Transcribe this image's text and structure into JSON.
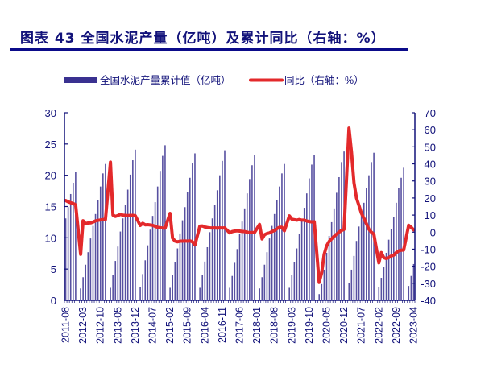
{
  "title": "图表 43 全国水泥产量（亿吨）及累计同比（右轴：%）",
  "colors": {
    "bars": "#3a3190",
    "line": "#e3292b",
    "axis": "#12127a",
    "rule": "#0b0b8a"
  },
  "chart_data": {
    "type": "bar+line",
    "title": "图表 43 全国水泥产量（亿吨）及累计同比（右轴：%）",
    "legend": {
      "placement": "top",
      "entries": [
        "全国水泥产量累计值（亿吨）",
        "同比（右轴：%）"
      ]
    },
    "grid": false,
    "start_month": "2011-08",
    "end_month": "2023-04",
    "x_tick_labels": [
      "2011-08",
      "2012-03",
      "2012-10",
      "2013-05",
      "2013-12",
      "2014-07",
      "2015-02",
      "2015-09",
      "2016-04",
      "2016-11",
      "2017-06",
      "2018-01",
      "2018-08",
      "2019-03",
      "2019-10",
      "2020-05",
      "2020-12",
      "2021-07",
      "2022-02",
      "2022-09",
      "2023-04"
    ],
    "y_left": {
      "range": [
        0,
        30
      ],
      "ticks": [
        0,
        5,
        10,
        15,
        20,
        25,
        30
      ]
    },
    "y_right": {
      "range": [
        -40,
        70
      ],
      "ticks": [
        -40,
        -30,
        -20,
        -10,
        0,
        10,
        20,
        30,
        40,
        50,
        60,
        70
      ]
    },
    "series": [
      {
        "name": "全国水泥产量累计值（亿吨）",
        "type": "bar",
        "axis": "left",
        "values": [
          13.1,
          14.9,
          17.0,
          18.8,
          20.6,
          null,
          1.9,
          3.7,
          5.7,
          7.7,
          9.9,
          11.9,
          13.8,
          16.0,
          18.2,
          20.3,
          21.8,
          null,
          2.0,
          4.1,
          6.3,
          8.6,
          11.0,
          13.1,
          15.3,
          17.7,
          20.1,
          22.4,
          24.1,
          null,
          2.1,
          4.2,
          6.4,
          8.8,
          11.3,
          13.5,
          15.7,
          18.2,
          20.7,
          23.1,
          24.8,
          null,
          2.0,
          4.0,
          6.1,
          8.3,
          10.7,
          12.8,
          14.9,
          17.3,
          19.6,
          21.9,
          23.5,
          null,
          2.0,
          4.1,
          6.2,
          8.5,
          10.9,
          13.1,
          15.2,
          17.6,
          20.0,
          22.3,
          24.0,
          null,
          2.0,
          3.9,
          6.0,
          8.2,
          10.6,
          12.6,
          14.7,
          17.1,
          19.4,
          21.6,
          23.2,
          null,
          1.9,
          3.7,
          5.7,
          7.7,
          9.9,
          11.9,
          13.8,
          16.0,
          18.2,
          20.3,
          21.8,
          null,
          2.0,
          4.0,
          6.1,
          8.3,
          10.6,
          12.7,
          14.8,
          17.1,
          19.5,
          21.7,
          23.3,
          null,
          1.0,
          2.6,
          4.9,
          7.6,
          10.3,
          12.5,
          14.7,
          17.2,
          19.7,
          22.1,
          23.8,
          null,
          2.8,
          4.9,
          7.1,
          9.5,
          11.8,
          13.7,
          15.6,
          17.9,
          20.0,
          22.1,
          23.6,
          null,
          2.1,
          3.6,
          5.4,
          7.6,
          9.7,
          11.4,
          13.3,
          15.6,
          17.9,
          19.6,
          21.2,
          null,
          2.3,
          3.9,
          5.8
        ]
      },
      {
        "name": "同比（右轴：%）",
        "type": "line",
        "axis": "right",
        "values": [
          18.5,
          17.8,
          17.2,
          16.8,
          16.0,
          null,
          -13.0,
          6.7,
          5.0,
          5.3,
          5.4,
          5.9,
          6.6,
          6.9,
          7.1,
          7.4,
          7.4,
          null,
          41.0,
          10.0,
          9.2,
          9.7,
          10.4,
          9.9,
          9.8,
          9.7,
          9.8,
          9.8,
          9.6,
          null,
          3.9,
          5.2,
          4.3,
          4.4,
          4.2,
          4.0,
          3.4,
          2.8,
          2.6,
          2.4,
          2.3,
          null,
          11.0,
          -3.5,
          -5.3,
          -5.7,
          -5.3,
          -5.3,
          -5.2,
          -5.3,
          -5.1,
          -5.7,
          -7.5,
          null,
          3.5,
          3.6,
          3.0,
          2.7,
          2.5,
          2.4,
          2.5,
          2.3,
          2.5,
          2.4,
          2.5,
          null,
          -0.5,
          0.3,
          0.6,
          0.8,
          0.6,
          0.4,
          0.3,
          0.0,
          -0.3,
          -0.2,
          -0.2,
          null,
          4.5,
          -4.0,
          -1.5,
          -0.8,
          -0.5,
          0.3,
          1.0,
          2.0,
          2.8,
          2.8,
          0.8,
          null,
          9.5,
          7.6,
          7.3,
          7.0,
          7.4,
          7.0,
          7.0,
          6.5,
          6.2,
          6.0,
          6.1,
          null,
          -29.5,
          -23.9,
          -13.0,
          -8.0,
          -5.5,
          -4.0,
          -2.5,
          -1.2,
          0.0,
          1.0,
          1.6,
          null,
          61.0,
          47.0,
          29.0,
          20.0,
          15.6,
          11.0,
          8.0,
          5.0,
          1.7,
          0.0,
          -1.2,
          null,
          -18.0,
          -12.0,
          -15.0,
          -15.5,
          -15.0,
          -14.0,
          -13.5,
          -12.0,
          -11.0,
          -10.6,
          -10.5,
          null,
          4.0,
          2.8,
          1.3
        ]
      }
    ]
  }
}
